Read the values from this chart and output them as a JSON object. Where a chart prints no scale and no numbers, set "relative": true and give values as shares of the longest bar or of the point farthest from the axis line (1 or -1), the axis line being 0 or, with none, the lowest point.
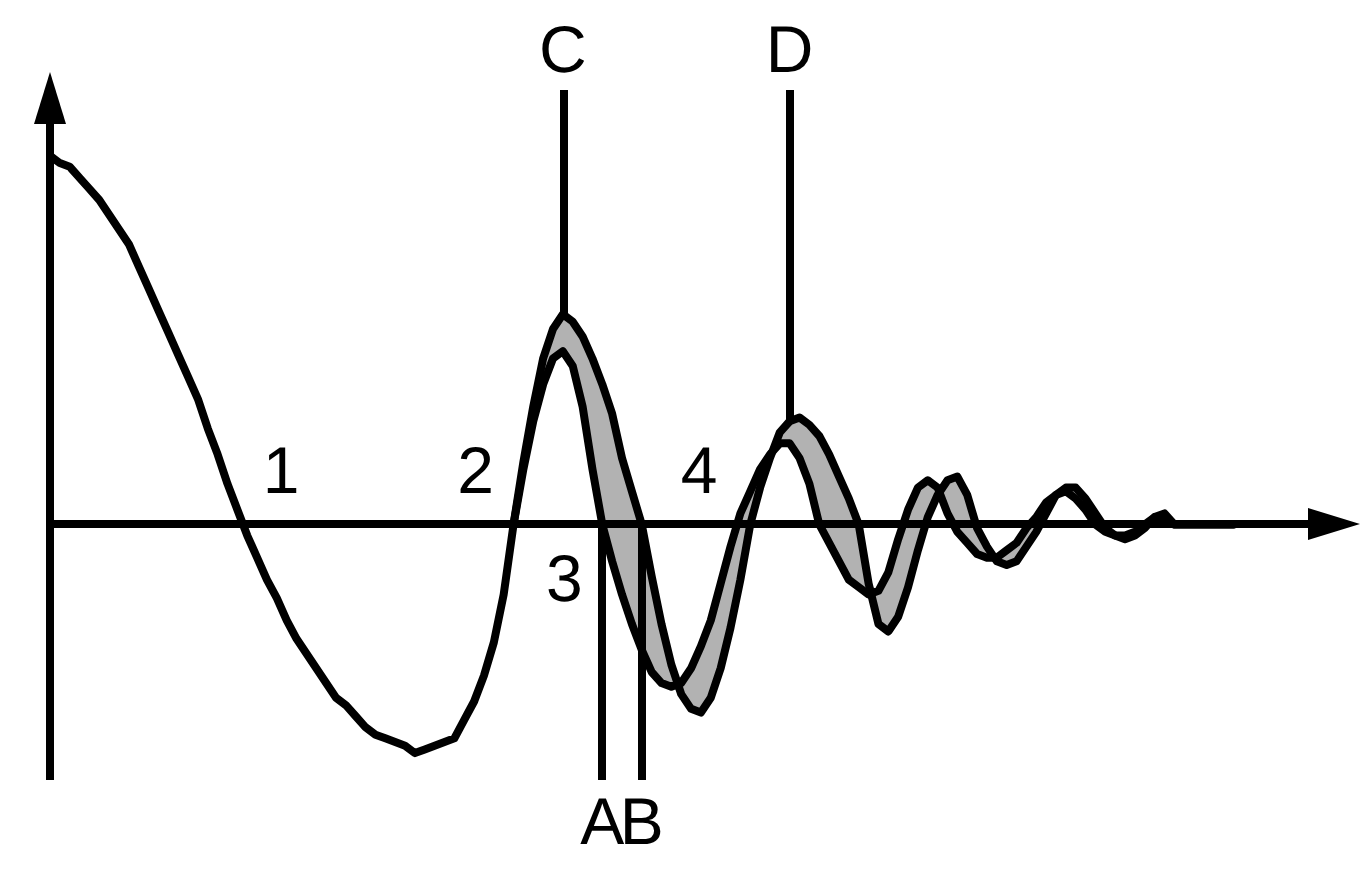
{
  "chart_data": {
    "type": "line",
    "relative": true,
    "marker": "none",
    "line_style": "solid",
    "categories": [
      null,
      null,
      null,
      null,
      null,
      null,
      null,
      null,
      null,
      null,
      null,
      null,
      null,
      null,
      null,
      null,
      null,
      null,
      null,
      null,
      null,
      null,
      null,
      null,
      null,
      null,
      null,
      null,
      null,
      null,
      null,
      null,
      null,
      null,
      null,
      null,
      null,
      null,
      null,
      null,
      null,
      null,
      null,
      null,
      null,
      null,
      null,
      null,
      null,
      null,
      null,
      null,
      "C",
      null,
      null,
      null,
      "A",
      null,
      null,
      null,
      "B",
      null,
      null,
      null,
      null,
      null,
      null,
      null,
      null,
      null,
      null,
      null,
      null,
      null,
      null,
      "D",
      null,
      null,
      null,
      null,
      null,
      null,
      null,
      null,
      null,
      null,
      null,
      null,
      null,
      null,
      null,
      null,
      null,
      null,
      null,
      null,
      null,
      null,
      null,
      null,
      null,
      null,
      null,
      null,
      null,
      null,
      null,
      null,
      null,
      null,
      null,
      null,
      null,
      null,
      null,
      null,
      null,
      null,
      null,
      null,
      null,
      null,
      null,
      null,
      null,
      null,
      null,
      null,
      null,
      null,
      null,
      null
    ],
    "series": [
      {
        "color": "#000000",
        "values": [
          1,
          0.98,
          0.97,
          0.94,
          0.91,
          0.88,
          0.84,
          0.8,
          0.76,
          0.7,
          0.64,
          0.58,
          0.52,
          0.46,
          0.4,
          0.34,
          0.26,
          0.19,
          0.11,
          0.04,
          -0.03,
          -0.09,
          -0.15,
          -0.2,
          -0.26,
          -0.31,
          -0.35,
          -0.39,
          -0.43,
          -0.47,
          -0.49,
          -0.52,
          -0.55,
          -0.57,
          -0.58,
          -0.59,
          -0.6,
          -0.62,
          -0.61,
          -0.6,
          -0.59,
          -0.58,
          -0.53,
          -0.48,
          -0.41,
          -0.32,
          -0.19,
          0,
          0.15,
          0.28,
          0.38,
          0.45,
          0.47,
          0.43,
          0.32,
          0.15,
          0,
          -0.1,
          -0.19,
          -0.27,
          -0.34,
          -0.4,
          -0.43,
          -0.44,
          -0.43,
          -0.39,
          -0.33,
          -0.26,
          -0.16,
          -0.06,
          0.03,
          0.09,
          0.15,
          0.19,
          0.22,
          0.22,
          0.18,
          0.11,
          0,
          -0.05,
          -0.1,
          -0.15,
          -0.17,
          -0.19,
          -0.18,
          -0.13,
          -0.04,
          0.04,
          0.1,
          0.12,
          0.1,
          0.03,
          -0.02,
          -0.05,
          -0.08,
          -0.09,
          -0.09,
          -0.07,
          -0.05,
          -0.01,
          0.02,
          0.06,
          0.08,
          0.09,
          0.07,
          0.04,
          0,
          -0.02,
          -0.03,
          -0.03,
          -0.02,
          0,
          0.02,
          0.01,
          0,
          0,
          0,
          0,
          0,
          0,
          0,
          null,
          null,
          null,
          null,
          null,
          null,
          null,
          null,
          null,
          null,
          null
        ]
      },
      {
        "color": "#000000",
        "values": [
          null,
          null,
          null,
          null,
          null,
          null,
          null,
          null,
          null,
          null,
          null,
          null,
          null,
          null,
          null,
          null,
          null,
          null,
          null,
          null,
          null,
          null,
          null,
          null,
          null,
          null,
          null,
          null,
          null,
          null,
          null,
          null,
          null,
          null,
          null,
          null,
          null,
          null,
          null,
          null,
          null,
          null,
          null,
          null,
          null,
          null,
          null,
          0,
          0.17,
          0.32,
          0.45,
          0.53,
          0.57,
          0.55,
          0.51,
          0.45,
          0.38,
          0.3,
          0.18,
          0.09,
          0,
          -0.14,
          -0.27,
          -0.38,
          -0.46,
          -0.5,
          -0.51,
          -0.47,
          -0.39,
          -0.28,
          -0.15,
          0,
          0.1,
          0.18,
          0.25,
          0.28,
          0.29,
          0.27,
          0.24,
          0.19,
          0.13,
          0.07,
          0,
          -0.16,
          -0.27,
          -0.29,
          -0.25,
          -0.17,
          -0.07,
          0.02,
          0.08,
          0.12,
          0.13,
          0.08,
          -0.01,
          -0.06,
          -0.1,
          -0.11,
          -0.1,
          -0.06,
          -0.02,
          0.03,
          0.08,
          0.1,
          0.1,
          0.07,
          0.03,
          -0.01,
          -0.03,
          -0.04,
          -0.03,
          -0.01,
          0.02,
          0.03,
          0,
          0,
          0,
          0,
          0,
          0,
          0,
          null,
          null,
          null,
          null,
          null,
          null,
          null,
          null,
          null,
          null,
          null
        ],
        "lower": [
          null,
          null,
          null,
          null,
          null,
          null,
          null,
          null,
          null,
          null,
          null,
          null,
          null,
          null,
          null,
          null,
          null,
          null,
          null,
          null,
          null,
          null,
          null,
          null,
          null,
          null,
          null,
          null,
          null,
          null,
          null,
          null,
          null,
          null,
          null,
          null,
          null,
          null,
          null,
          null,
          null,
          null,
          null,
          null,
          null,
          null,
          null,
          0,
          0.15,
          0.28,
          0.38,
          0.45,
          0.47,
          0.43,
          0.32,
          0.15,
          0,
          -0.1,
          -0.19,
          -0.27,
          -0.34,
          -0.4,
          -0.43,
          -0.44,
          -0.46,
          -0.5,
          -0.51,
          -0.47,
          -0.39,
          -0.28,
          -0.15,
          0,
          0.1,
          0.18,
          0.22,
          0.22,
          0.18,
          0.11,
          0,
          -0.05,
          -0.1,
          -0.15,
          -0.17,
          -0.19,
          -0.27,
          -0.29,
          -0.25,
          -0.17,
          -0.07,
          0.02,
          0.08,
          0.03,
          -0.02,
          -0.05,
          -0.08,
          -0.09,
          -0.1,
          -0.11,
          -0.1,
          -0.06,
          -0.02,
          0.03,
          0.08,
          0.09,
          0.07,
          0.04,
          0,
          -0.02,
          -0.03,
          -0.04,
          -0.03,
          -0.01,
          0.02,
          0.01,
          0,
          0,
          0,
          0,
          0,
          0,
          0,
          null,
          null,
          null,
          null,
          null,
          null,
          null,
          null,
          null,
          null,
          null
        ],
        "upper": [
          null,
          null,
          null,
          null,
          null,
          null,
          null,
          null,
          null,
          null,
          null,
          null,
          null,
          null,
          null,
          null,
          null,
          null,
          null,
          null,
          null,
          null,
          null,
          null,
          null,
          null,
          null,
          null,
          null,
          null,
          null,
          null,
          null,
          null,
          null,
          null,
          null,
          null,
          null,
          null,
          null,
          null,
          null,
          null,
          null,
          null,
          null,
          0,
          0.17,
          0.32,
          0.45,
          0.53,
          0.57,
          0.55,
          0.51,
          0.45,
          0.38,
          0.3,
          0.18,
          0.09,
          0,
          -0.14,
          -0.27,
          -0.38,
          -0.43,
          -0.39,
          -0.33,
          -0.26,
          -0.16,
          -0.06,
          0.03,
          0.09,
          0.15,
          0.19,
          0.25,
          0.28,
          0.29,
          0.27,
          0.24,
          0.19,
          0.13,
          0.07,
          0,
          -0.16,
          -0.18,
          -0.13,
          -0.04,
          0.04,
          0.1,
          0.12,
          0.1,
          0.12,
          0.13,
          0.08,
          -0.01,
          -0.06,
          -0.09,
          -0.07,
          -0.05,
          -0.01,
          0.02,
          0.06,
          0.08,
          0.1,
          0.1,
          0.07,
          0.03,
          -0.01,
          -0.03,
          -0.03,
          -0.02,
          0,
          0.02,
          0.03,
          0,
          0,
          0,
          0,
          0,
          0,
          0,
          null,
          null,
          null,
          null,
          null,
          null,
          null,
          null,
          null,
          null,
          null
        ]
      }
    ],
    "ref_lines": [
      {
        "axis": "x",
        "value": "C"
      },
      {
        "axis": "x",
        "value": "D"
      },
      {
        "axis": "x",
        "value": "A"
      },
      {
        "axis": "x",
        "value": "B"
      }
    ],
    "annotations": [
      "1",
      "2",
      "3",
      "4"
    ]
  }
}
